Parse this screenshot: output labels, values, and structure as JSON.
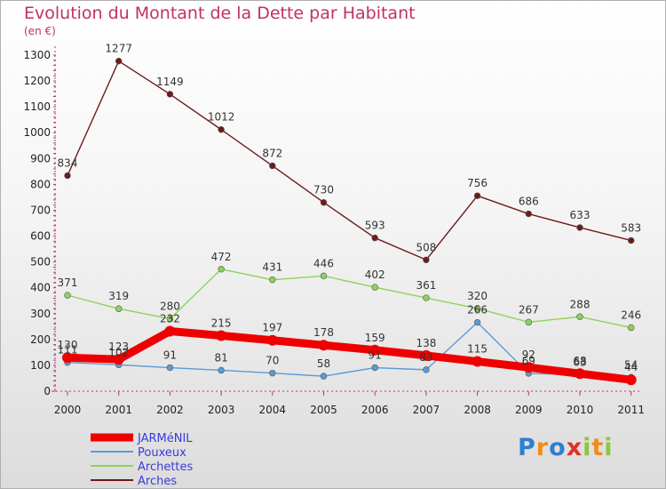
{
  "title": "Evolution du Montant de la Dette par Habitant",
  "unit_label": "(en €)",
  "logo": {
    "text": "Proxiti",
    "colors": [
      "#2e7fd0",
      "#f08c1e",
      "#2e7fd0",
      "#e0302a",
      "#8dc63f",
      "#f08c1e",
      "#8dc63f"
    ]
  },
  "chart_data": {
    "type": "line",
    "x": [
      "2000",
      "2001",
      "2002",
      "2003",
      "2004",
      "2005",
      "2006",
      "2007",
      "2008",
      "2009",
      "2010",
      "2011"
    ],
    "ylim": [
      0,
      1300
    ],
    "yticks": [
      0,
      100,
      200,
      300,
      400,
      500,
      600,
      700,
      800,
      900,
      1000,
      1100,
      1200,
      1300
    ],
    "grid": false,
    "legend_position": "bottom-left",
    "series": [
      {
        "name": "Arches",
        "color": "#6e1a1a",
        "values": [
          834,
          1277,
          1149,
          1012,
          872,
          730,
          593,
          508,
          756,
          686,
          633,
          583
        ]
      },
      {
        "name": "Archettes",
        "color": "#8dd35a",
        "values": [
          371,
          319,
          280,
          472,
          431,
          446,
          402,
          361,
          320,
          267,
          288,
          246
        ]
      },
      {
        "name": "Pouxeux",
        "color": "#5b9ad5",
        "values": [
          111,
          102,
          91,
          81,
          70,
          58,
          91,
          83,
          266,
          69,
          63,
          54
        ]
      },
      {
        "name": "JARMéNIL",
        "color": "#ee0000",
        "values": [
          130,
          123,
          232,
          215,
          197,
          178,
          159,
          138,
          115,
          92,
          68,
          44
        ]
      }
    ],
    "legend_order": [
      "JARMéNIL",
      "Pouxeux",
      "Archettes",
      "Arches"
    ]
  }
}
